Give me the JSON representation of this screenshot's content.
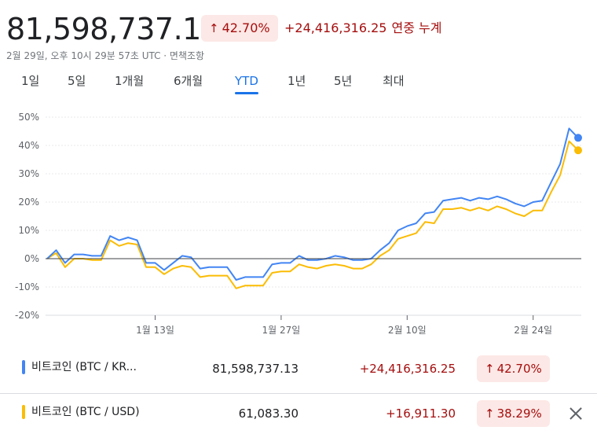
{
  "header": {
    "price": "81,598,737.13",
    "change_pct": "42.70%",
    "change_abs": "+24,416,316.25",
    "period_label": "연중 누계",
    "subline": "2월 29일, 오후 10시 29분 57초 UTC · 면책조항"
  },
  "ranges": [
    "1일",
    "5일",
    "1개월",
    "6개월",
    "YTD",
    "1년",
    "5년",
    "최대"
  ],
  "active_range": "YTD",
  "legend": [
    {
      "name": "비트코인 (BTC / KR...",
      "price": "81,598,737.13",
      "change": "+24,416,316.25",
      "pct": "42.70%",
      "color": "#4285f4"
    },
    {
      "name": "비트코인 (BTC / USD)",
      "price": "61,083.30",
      "change": "+16,911.30",
      "pct": "38.29%",
      "color": "#fbbc04"
    }
  ],
  "chart_data": {
    "type": "line",
    "yticks": [
      "50%",
      "40%",
      "30%",
      "20%",
      "10%",
      "0%",
      "-10%",
      "-20%"
    ],
    "ylim": [
      -20,
      50
    ],
    "xticks": [
      {
        "label": "1월 13일",
        "index": 12
      },
      {
        "label": "1월 27일",
        "index": 26
      },
      {
        "label": "2월 10일",
        "index": 40
      },
      {
        "label": "2월 24일",
        "index": 54
      }
    ],
    "x_count": 60,
    "series": [
      {
        "name": "비트코인 (BTC / KR...)",
        "color": "#4285f4",
        "values": [
          0,
          3,
          -1.5,
          1.5,
          1.5,
          1,
          1,
          8,
          6.5,
          7.5,
          6.5,
          -1.5,
          -1.5,
          -4,
          -1.5,
          1,
          0.5,
          -3.5,
          -3,
          -3,
          -3,
          -7.5,
          -6.5,
          -6.5,
          -6.5,
          -2,
          -1.5,
          -1.5,
          1,
          -0.5,
          -0.5,
          0,
          1,
          0.5,
          -0.5,
          -0.5,
          0,
          3,
          5.5,
          10,
          11.5,
          12.5,
          16,
          16.5,
          20.5,
          21,
          21.5,
          20.5,
          21.5,
          21,
          22,
          21,
          19.5,
          18.5,
          20,
          20.5,
          27,
          33.5,
          46,
          42.7
        ]
      },
      {
        "name": "비트코인 (BTC / USD)",
        "color": "#fbbc04",
        "values": [
          0,
          2,
          -3,
          0,
          0,
          -0.5,
          -0.5,
          6.5,
          4.5,
          5.5,
          5,
          -3,
          -3,
          -5.5,
          -3.5,
          -2.5,
          -3,
          -6.5,
          -6,
          -6,
          -6,
          -10.5,
          -9.5,
          -9.5,
          -9.5,
          -5,
          -4.5,
          -4.5,
          -2,
          -3,
          -3.5,
          -2.5,
          -2,
          -2.5,
          -3.5,
          -3.5,
          -2,
          1,
          3,
          7,
          8,
          9,
          13,
          12.5,
          17.5,
          17.5,
          18,
          17,
          18,
          17,
          18.5,
          17.5,
          16,
          15,
          17,
          17,
          23.5,
          29.5,
          41.5,
          38.29
        ]
      }
    ]
  }
}
